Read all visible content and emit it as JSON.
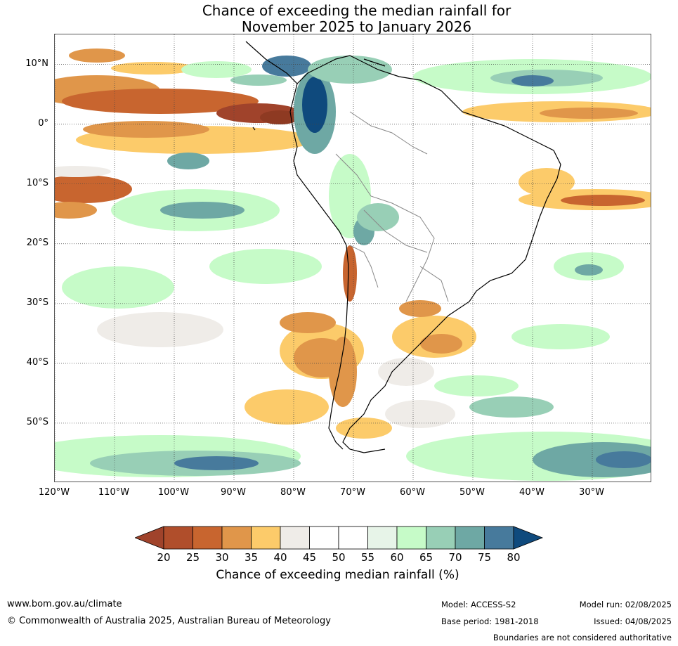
{
  "title": {
    "line1": "Chance of exceeding the median rainfall for",
    "line2": "November 2025 to January 2026"
  },
  "map": {
    "lat_labels": [
      "10°N",
      "0°",
      "10°S",
      "20°S",
      "30°S",
      "40°S",
      "50°S"
    ],
    "lon_labels": [
      "120°W",
      "110°W",
      "100°W",
      "90°W",
      "80°W",
      "70°W",
      "60°W",
      "50°W",
      "40°W",
      "30°W"
    ],
    "lon_extent": [
      -120,
      -20
    ],
    "lat_extent": [
      -60,
      15
    ]
  },
  "colorbar": {
    "ticks": [
      "20",
      "25",
      "30",
      "35",
      "40",
      "45",
      "50",
      "55",
      "60",
      "65",
      "70",
      "75",
      "80"
    ],
    "colors": [
      "#a0432b",
      "#b04e2b",
      "#c8652f",
      "#e0964a",
      "#fccb6a",
      "#efece8",
      "#ffffff",
      "#ffffff",
      "#e7f4e8",
      "#c6fbc8",
      "#98cfb6",
      "#6ea8a4",
      "#477a9c",
      "#0f4a7d"
    ],
    "label": "Chance of exceeding median rainfall (%)"
  },
  "footer": {
    "website": "www.bom.gov.au/climate",
    "copyright": "© Commonwealth of Australia 2025, Australian Bureau of Meteorology",
    "model": "Model: ACCESS-S2",
    "base_period": "Base period: 1981-2018",
    "model_run": "Model run: 02/08/2025",
    "issued": "Issued: 04/08/2025",
    "disclaimer": "Boundaries are not considered authoritative"
  }
}
